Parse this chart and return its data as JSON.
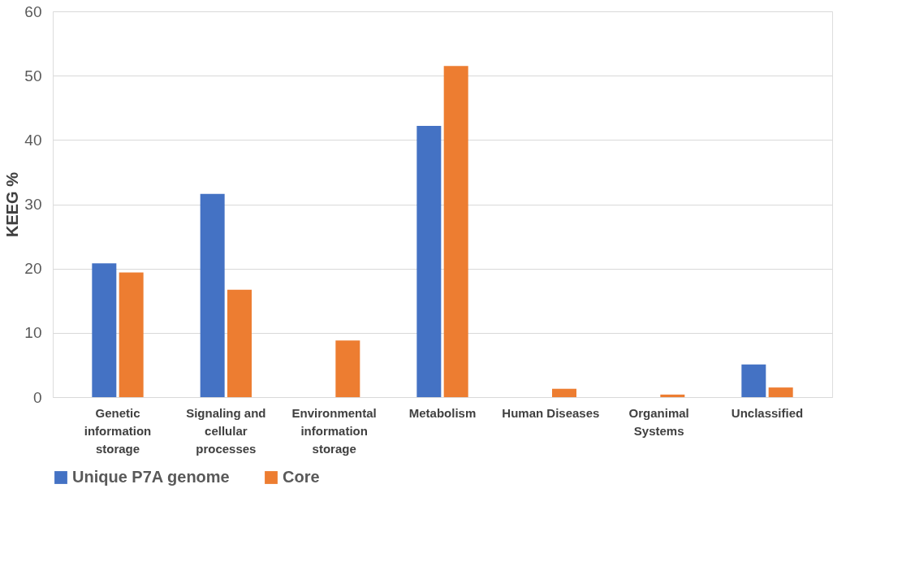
{
  "chart_data": {
    "type": "bar",
    "ylabel": "KEEG %",
    "categories": [
      "Genetic information storage",
      "Signaling and cellular processes",
      "Environmental information storage",
      "Metabolism",
      "Human Diseases",
      "Organimal Systems",
      "Unclassified"
    ],
    "series": [
      {
        "name": "Unique P7A genome",
        "color": "#4472c4",
        "values": [
          20.8,
          31.6,
          0,
          42.2,
          0,
          0,
          5.1
        ]
      },
      {
        "name": "Core",
        "color": "#ed7d31",
        "values": [
          19.4,
          16.7,
          8.8,
          51.5,
          1.3,
          0.4,
          1.5
        ]
      }
    ],
    "ylim": [
      0,
      60
    ],
    "yticks": [
      0,
      10,
      20,
      30,
      40,
      50,
      60
    ],
    "grid": "y",
    "legend": "bottom"
  }
}
